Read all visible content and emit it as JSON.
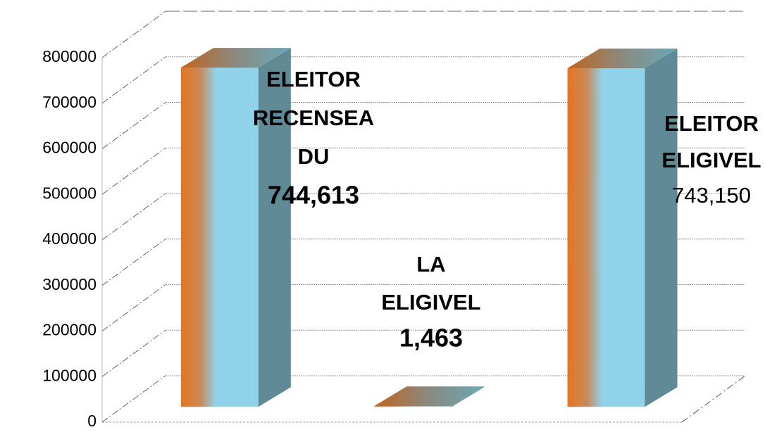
{
  "chart_data": {
    "type": "bar3d",
    "categories": [
      [
        "ELEITOR",
        "RECENSEA",
        "DU"
      ],
      [
        "LA",
        "ELIGIVEL"
      ],
      [
        "ELEITOR",
        "ELIGIVEL"
      ]
    ],
    "values": [
      744613,
      1463,
      743150
    ],
    "value_labels": [
      "744,613",
      "1,463",
      "743,150"
    ],
    "ylim": [
      0,
      800000
    ],
    "yticks": [
      0,
      100000,
      200000,
      300000,
      400000,
      500000,
      600000,
      700000,
      800000
    ],
    "grid": true
  }
}
